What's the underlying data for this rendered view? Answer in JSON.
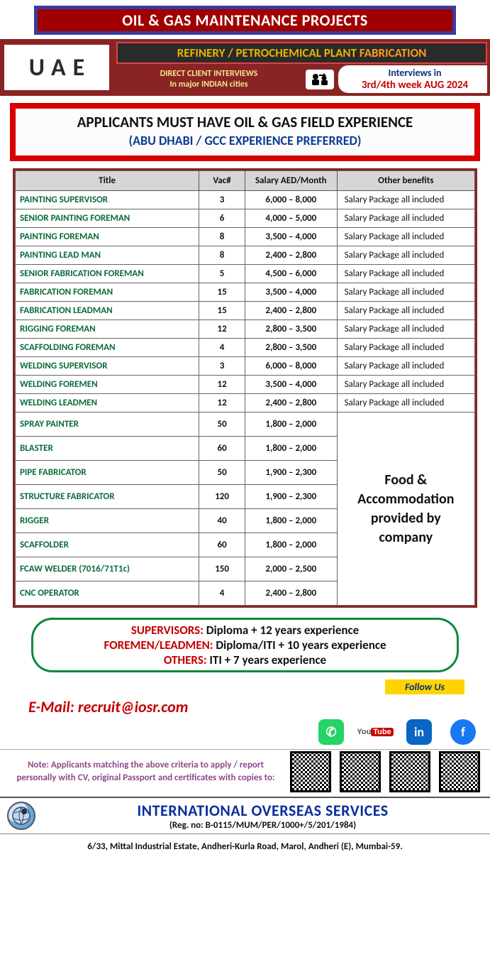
{
  "banner": {
    "title": "OIL & GAS MAINTENANCE PROJECTS"
  },
  "header": {
    "country": "UAE",
    "refinery_pre": "REFINERY / PETROCHEMICAL PLANT ",
    "refinery_fab": "FABRICATION",
    "interview_l1": "DIRECT CLIENT INTERVIEWS",
    "interview_l2": "In major INDIAN cities",
    "sched_l1": "Interviews in",
    "sched_l2": "3rd/4th week AUG 2024"
  },
  "experience": {
    "l1": "APPLICANTS MUST HAVE OIL & GAS FIELD EXPERIENCE",
    "l2": "(ABU DHABI / GCC EXPERIENCE PREFERRED)"
  },
  "table": {
    "headers": {
      "title": "Title",
      "vac": "Vac#",
      "salary": "Salary AED/Month",
      "benefits": "Other benefits"
    },
    "benefit_text": "Salary Package all included",
    "rows_a": [
      {
        "title": "PAINTING SUPERVISOR",
        "vac": "3",
        "salary": "6,000 – 8,000"
      },
      {
        "title": "SENIOR PAINTING FOREMAN",
        "vac": "6",
        "salary": "4,000 – 5,000"
      },
      {
        "title": "PAINTING FOREMAN",
        "vac": "8",
        "salary": "3,500 – 4,000"
      },
      {
        "title": "PAINTING LEAD MAN",
        "vac": "8",
        "salary": "2,400 – 2,800"
      },
      {
        "title": "SENIOR FABRICATION FOREMAN",
        "vac": "5",
        "salary": "4,500 – 6,000"
      },
      {
        "title": "FABRICATION FOREMAN",
        "vac": "15",
        "salary": "3,500 – 4,000"
      },
      {
        "title": "FABRICATION LEADMAN",
        "vac": "15",
        "salary": "2,400 – 2,800"
      },
      {
        "title": "RIGGING FOREMAN",
        "vac": "12",
        "salary": "2,800 – 3,500"
      },
      {
        "title": "SCAFFOLDING FOREMAN",
        "vac": "4",
        "salary": "2,800 – 3,500"
      },
      {
        "title": "WELDING SUPERVISOR",
        "vac": "3",
        "salary": "6,000 – 8,000"
      },
      {
        "title": "WELDING FOREMEN",
        "vac": "12",
        "salary": "3,500 – 4,000"
      },
      {
        "title": "WELDING LEADMEN",
        "vac": "12",
        "salary": "2,400 – 2,800"
      }
    ],
    "rows_b": [
      {
        "title": "SPRAY PAINTER",
        "vac": "50",
        "salary": "1,800 – 2,000"
      },
      {
        "title": "BLASTER",
        "vac": "60",
        "salary": "1,800 – 2,000"
      },
      {
        "title": "PIPE FABRICATOR",
        "vac": "50",
        "salary": "1,900 – 2,300"
      },
      {
        "title": "STRUCTURE FABRICATOR",
        "vac": "120",
        "salary": "1,900 – 2,300"
      },
      {
        "title": "RIGGER",
        "vac": "40",
        "salary": "1,800 – 2,000"
      },
      {
        "title": "SCAFFOLDER",
        "vac": "60",
        "salary": "1,800 – 2,000"
      },
      {
        "title": "FCAW WELDER (7016/71T1c)",
        "vac": "150",
        "salary": "2,000 – 2,500"
      },
      {
        "title": "CNC OPERATOR",
        "vac": "4",
        "salary": "2,400 – 2,800"
      }
    ],
    "benefit_b": "Food & Accommodation provided by company",
    "col_widths": {
      "title": "40%",
      "vac": "10%",
      "salary": "20%",
      "benefits": "30%"
    }
  },
  "qual": {
    "sup_lbl": "SUPERVISORS:",
    "sup_txt": " Diploma + 12 years experience",
    "fore_lbl": "FOREMEN/LEADMEN:",
    "fore_txt": " Diploma/ITI + 10 years experience",
    "oth_lbl": "OTHERS:",
    "oth_txt": " ITI + 7 years experience"
  },
  "contact": {
    "email": "E-Mail: recruit@iosr.com",
    "follow": "Follow Us"
  },
  "social": {
    "whatsapp": {
      "bg": "#25d366",
      "fg": "#ffffff",
      "glyph": "✆"
    },
    "youtube": {
      "bg": "#ffffff",
      "fg": "#cc0000",
      "glyph": "▶"
    },
    "linkedin": {
      "bg": "#0a66c2",
      "fg": "#ffffff",
      "glyph": "in"
    },
    "facebook": {
      "bg": "#1877f2",
      "fg": "#ffffff",
      "glyph": "f"
    }
  },
  "note": "Note: Applicants matching the above criteria to apply / report personally with CV, original Passport and certificates with copies to:",
  "company": {
    "name": "INTERNATIONAL OVERSEAS SERVICES",
    "reg": "(Reg. no: B-0115/MUM/PER/1000+/5/201/1984)",
    "address": "6/33, Mittal Industrial Estate, Andheri-Kurla Road, Marol, Andheri (E), Mumbai-59."
  },
  "colors": {
    "dark_red": "#8a2424",
    "bright_red": "#d90000",
    "title_green": "#0b6b3a",
    "blue": "#0b2e9e"
  }
}
